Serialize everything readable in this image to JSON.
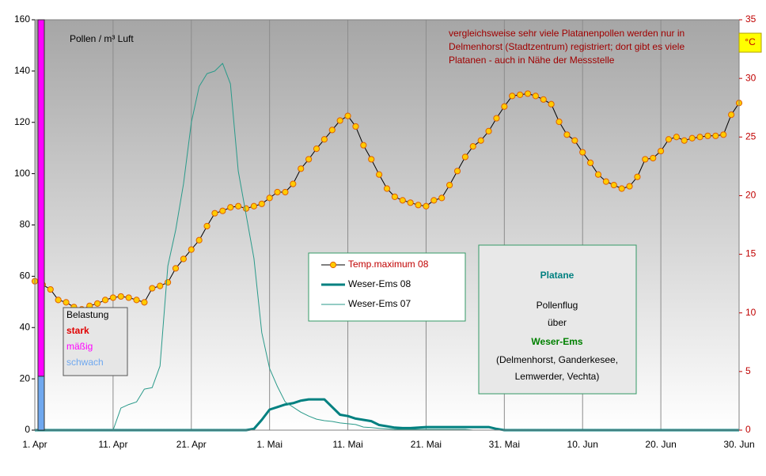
{
  "chart_data": {
    "type": "line",
    "y_label": "Pollen / m³  Luft",
    "y2_label": "°C",
    "note": [
      " vergleichsweise sehr viele Platanenpollen werden nur in",
      "Delmenhorst (Stadtzentrum) registriert; dort gibt es viele",
      "Platanen - auch in Nähe der Messstelle"
    ],
    "info_box": {
      "title": "Platane",
      "line1": "Pollenflug",
      "line2": "über",
      "region": "Weser-Ems",
      "line3": "(Delmenhorst, Ganderkesee,",
      "line4": "Lemwerder, Vechta)"
    },
    "belastung": {
      "title": "Belastung",
      "levels": [
        {
          "name": "stark",
          "color": "#e00000"
        },
        {
          "name": "mäßig",
          "color": "#ff00ff",
          "from": 21,
          "to": 160
        },
        {
          "name": "schwach",
          "color": "#6fa8ef",
          "from": 0,
          "to": 21
        }
      ]
    },
    "categories": [
      "1. Apr",
      null,
      null,
      null,
      null,
      null,
      null,
      null,
      null,
      null,
      "11. Apr",
      null,
      null,
      null,
      null,
      null,
      null,
      null,
      null,
      null,
      "21. Apr",
      null,
      null,
      null,
      null,
      null,
      null,
      null,
      null,
      null,
      "1. Mai",
      null,
      null,
      null,
      null,
      null,
      null,
      null,
      null,
      null,
      "11. Mai",
      null,
      null,
      null,
      null,
      null,
      null,
      null,
      null,
      null,
      "21. Mai",
      null,
      null,
      null,
      null,
      null,
      null,
      null,
      null,
      null,
      "31. Mai",
      null,
      null,
      null,
      null,
      null,
      null,
      null,
      null,
      null,
      "10. Jun",
      null,
      null,
      null,
      null,
      null,
      null,
      null,
      null,
      null,
      "20. Jun",
      null,
      null,
      null,
      null,
      null,
      null,
      null,
      null,
      null,
      "30. Jun"
    ],
    "series": [
      {
        "name": "Temp.maximum 08",
        "color": "#000000",
        "marker_color": "#ffcc00",
        "line_width": 1,
        "markers": true,
        "axis": "y2",
        "values": [
          12.7,
          12.4,
          12.0,
          11.1,
          10.9,
          10.5,
          10.3,
          10.6,
          10.8,
          11.1,
          11.3,
          11.4,
          11.3,
          11.1,
          10.9,
          12.1,
          12.3,
          12.6,
          13.8,
          14.6,
          15.4,
          16.2,
          17.4,
          18.5,
          18.7,
          19.0,
          19.1,
          18.9,
          19.1,
          19.3,
          19.8,
          20.3,
          20.3,
          21.0,
          22.3,
          23.1,
          24.0,
          24.8,
          25.6,
          26.4,
          26.8,
          25.9,
          24.3,
          23.1,
          21.8,
          20.6,
          19.9,
          19.6,
          19.4,
          19.2,
          19.1,
          19.6,
          19.8,
          20.9,
          22.1,
          23.3,
          24.2,
          24.7,
          25.5,
          26.6,
          27.6,
          28.5,
          28.6,
          28.7,
          28.5,
          28.2,
          27.8,
          26.3,
          25.2,
          24.7,
          23.7,
          22.8,
          21.8,
          21.2,
          20.9,
          20.6,
          20.8,
          21.6,
          23.1,
          23.2,
          23.8,
          24.8,
          25.0,
          24.7,
          24.9,
          25.0,
          25.1,
          25.1,
          25.2,
          26.9,
          27.9
        ]
      },
      {
        "name": "Weser-Ems 08",
        "color": "#008080",
        "line_width": 3,
        "markers": false,
        "values": [
          0,
          0,
          0,
          0,
          0,
          0,
          0,
          0,
          0,
          0,
          0,
          0,
          0,
          0,
          0,
          0,
          0,
          0,
          0,
          0,
          0,
          0,
          0,
          0,
          0,
          0,
          0,
          0,
          0.5,
          4,
          8,
          9,
          10,
          10.5,
          11.5,
          12,
          12,
          12,
          9,
          6,
          5.5,
          4.5,
          4,
          3.5,
          2,
          1.5,
          1,
          0.8,
          0.8,
          1,
          1.2,
          1.2,
          1.2,
          1.2,
          1.2,
          1.2,
          1.2,
          1.2,
          1.2,
          0.5,
          0,
          0,
          0,
          0,
          0,
          0,
          0,
          0,
          0,
          0,
          0,
          0,
          0,
          0,
          0,
          0,
          0,
          0,
          0,
          0,
          0,
          0,
          0,
          0,
          0,
          0,
          0,
          0,
          0,
          0,
          0
        ]
      },
      {
        "name": "Weser-Ems 07",
        "color": "#2a9a8a",
        "line_width": 1,
        "markers": false,
        "values": [
          0,
          0,
          0,
          0,
          0,
          0,
          0,
          0,
          0,
          0,
          0,
          8.6,
          10,
          11,
          16,
          16.6,
          25,
          64,
          78,
          96,
          120,
          134,
          139,
          140,
          143,
          135,
          101,
          84,
          67,
          38,
          24,
          17,
          11,
          9,
          7,
          5.5,
          4.3,
          3.7,
          3.4,
          2.8,
          2.5,
          2.2,
          1.2,
          1,
          0.7,
          0.5,
          0.3,
          0.3,
          0.3,
          0.3,
          0.3,
          0.3,
          0.3,
          0.3,
          0.3,
          0.3,
          0,
          0,
          0,
          0,
          0,
          0,
          0,
          0,
          0,
          0,
          0,
          0,
          0,
          0,
          0,
          0,
          0,
          0,
          0,
          0,
          0,
          0,
          0,
          0,
          0,
          0,
          0,
          0,
          0,
          0,
          0,
          0,
          0,
          0,
          0
        ]
      }
    ],
    "ylim": [
      0,
      160
    ],
    "yticks": [
      0,
      20,
      40,
      60,
      80,
      100,
      120,
      140,
      160
    ],
    "y2lim": [
      0,
      35
    ],
    "y2ticks": [
      0,
      5,
      10,
      15,
      20,
      25,
      30,
      35
    ],
    "grid": "x"
  }
}
